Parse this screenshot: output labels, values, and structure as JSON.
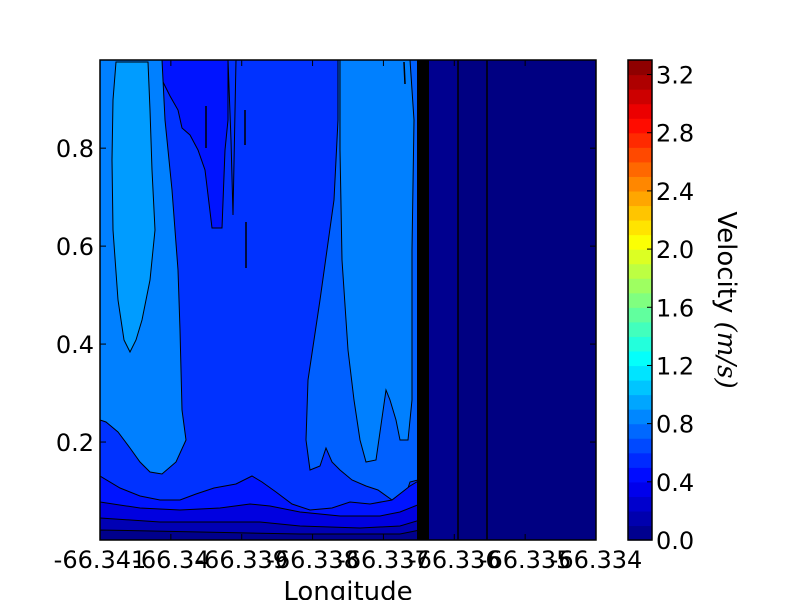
{
  "chart_data": {
    "type": "heatmap",
    "subtype": "filled-contour",
    "xlabel": "Longitude",
    "ylabel": "",
    "colorbar_label": "Velocity ",
    "colorbar_unit": "(m/s)",
    "x_ticks": [
      "-66.341",
      "-66.34",
      "-66.339",
      "-66.338",
      "-66.337",
      "-66.336",
      "-66.335",
      "-66.334"
    ],
    "x_tick_values": [
      -66.341,
      -66.34,
      -66.339,
      -66.338,
      -66.337,
      -66.336,
      -66.335,
      -66.334
    ],
    "xlim": [
      -66.341,
      -66.334
    ],
    "y_ticks": [
      "0.2",
      "0.4",
      "0.6",
      "0.8"
    ],
    "y_tick_values": [
      0.2,
      0.4,
      0.6,
      0.8
    ],
    "ylim": [
      0,
      0.98
    ],
    "colorbar_ticks": [
      "0.0",
      "0.4",
      "0.8",
      "1.2",
      "1.6",
      "2.0",
      "2.4",
      "2.8",
      "3.2"
    ],
    "colorbar_tick_values": [
      0.0,
      0.4,
      0.8,
      1.2,
      1.6,
      2.0,
      2.4,
      2.8,
      3.2
    ],
    "colorbar_range": [
      0.0,
      3.3
    ],
    "contour_levels": [
      0.0,
      0.1,
      0.2,
      0.3,
      0.4,
      0.5,
      0.6,
      0.7,
      0.8,
      0.9,
      1.0
    ],
    "colormap": "jet",
    "grid": false,
    "regions": [
      {
        "x": [
          -66.341,
          -66.3372
        ],
        "y": [
          0.0,
          0.98
        ],
        "velocity": 0.45
      },
      {
        "x": [
          -66.3408,
          -66.3395
        ],
        "y": [
          0.12,
          0.98
        ],
        "velocity": 0.75
      },
      {
        "x": [
          -66.3406,
          -66.3398
        ],
        "y": [
          0.38,
          0.96
        ],
        "velocity": 0.85
      },
      {
        "x": [
          -66.3385,
          -66.3373
        ],
        "y": [
          0.05,
          0.98
        ],
        "velocity": 0.7
      },
      {
        "x": [
          -66.3372,
          -66.334
        ],
        "y": [
          0.0,
          0.98
        ],
        "velocity": 0.05
      }
    ]
  }
}
